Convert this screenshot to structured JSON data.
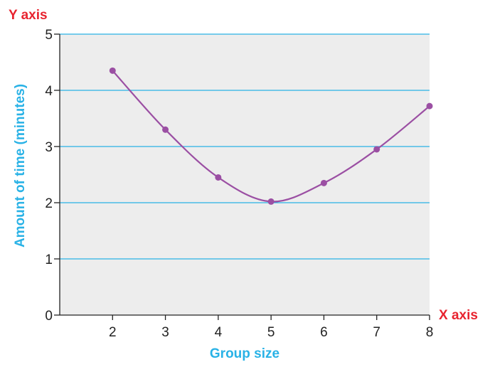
{
  "chart_data": {
    "type": "line",
    "title": "",
    "xlabel": "Group size",
    "ylabel": "Amount of time (minutes)",
    "y_axis_tag": "Y axis",
    "x_axis_tag": "X axis",
    "x": [
      2,
      3,
      4,
      5,
      6,
      7,
      8
    ],
    "series": [
      {
        "values": [
          4.35,
          3.3,
          2.45,
          2.02,
          2.35,
          2.95,
          3.72
        ]
      }
    ],
    "xlim": [
      1,
      8
    ],
    "ylim": [
      0,
      5
    ],
    "x_ticks": [
      2,
      3,
      4,
      5,
      6,
      7,
      8
    ],
    "y_ticks": [
      0,
      1,
      2,
      3,
      4,
      5
    ],
    "smooth": true,
    "grid": "horizontal",
    "colors": {
      "line": "#9b4fa3",
      "marker": "#9b4fa3",
      "grid": "#29b2e6",
      "plot_bg": "#ededed",
      "axis_title": "#29b2e6",
      "axis_tag": "#e8232f",
      "axis_line": "#222222"
    }
  }
}
